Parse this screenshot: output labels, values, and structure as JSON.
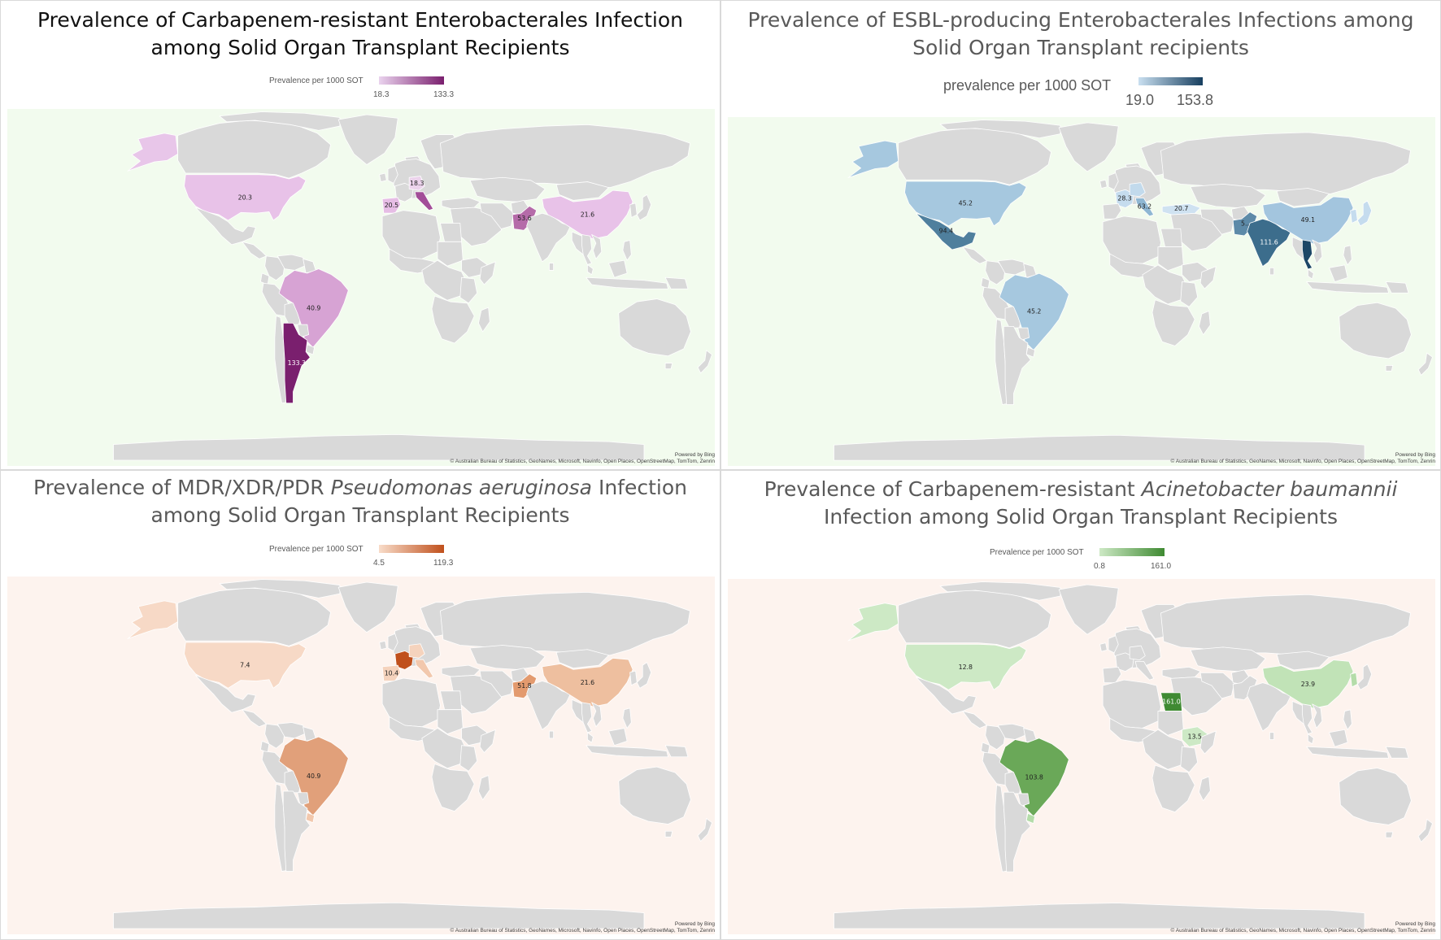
{
  "maps": [
    {
      "id": "cre",
      "title_lines": [
        [
          {
            "t": "Prevalence of Carbapenem-resistant Enterobacterales Infection"
          }
        ],
        [
          {
            "t": "among Solid Organ  Transplant Recipients"
          }
        ]
      ],
      "legend": {
        "label": "Prevalence per 1000 SOT",
        "min": "18.3",
        "max": "133.3",
        "color_min": "#ead3ee",
        "color_max": "#7a1f6e"
      },
      "background": "#f2fbee",
      "credit_powered": "Powered by Bing",
      "credit_sources": "© Australian Bureau of Statistics, GeoNames, Microsoft, Navinfo, Open Places, OpenStreetMap, TomTom, Zenrin",
      "regions": [
        {
          "country": "Alaska",
          "shape": "alaska",
          "value": null,
          "color": "#e8c6e9",
          "label": ""
        },
        {
          "country": "United States",
          "shape": "usa",
          "value": 20.3,
          "color": "#e8c2e8",
          "label": "20.3"
        },
        {
          "country": "Spain",
          "shape": "spain",
          "value": 20.5,
          "color": "#e6bde5",
          "label": "20.5"
        },
        {
          "country": "Germany",
          "shape": "germany",
          "value": 18.3,
          "color": "#ecd3ec",
          "label": "18.3"
        },
        {
          "country": "Italy",
          "shape": "italy",
          "value": null,
          "color": "#a24d98",
          "label": ""
        },
        {
          "country": "Pakistan",
          "shape": "pakistan",
          "value": 53.6,
          "color": "#b56ba9",
          "label": "53.6"
        },
        {
          "country": "China",
          "shape": "china",
          "value": 21.6,
          "color": "#e8c2e8",
          "label": "21.6"
        },
        {
          "country": "Brazil",
          "shape": "brazil",
          "value": 40.9,
          "color": "#d7a3d4",
          "label": "40.9"
        },
        {
          "country": "Argentina",
          "shape": "argentina",
          "value": 133.3,
          "color": "#7a1f6e",
          "label": "133.3"
        }
      ]
    },
    {
      "id": "esbl",
      "title_lines": [
        [
          {
            "t": "Prevalence of ESBL-producing Enterobacterales Infections among"
          }
        ],
        [
          {
            "t": "Solid Organ Transplant recipients"
          }
        ]
      ],
      "legend": {
        "label": "prevalence per 1000 SOT",
        "min": "19.0",
        "max": "153.8",
        "color_min": "#c9dff0",
        "color_max": "#173f5f"
      },
      "background": "#f2fbee",
      "credit_powered": "Powered by Bing",
      "credit_sources": "© Australian Bureau of Statistics, GeoNames, Microsoft, Navinfo, Open Places, OpenStreetMap, TomTom, Zenrin",
      "regions": [
        {
          "country": "Alaska",
          "shape": "alaska",
          "value": null,
          "color": "#a6c8df",
          "label": ""
        },
        {
          "country": "United States",
          "shape": "usa",
          "value": 45.2,
          "color": "#a6c8df",
          "label": "45.2"
        },
        {
          "country": "Mexico",
          "shape": "mexico",
          "value": 94.4,
          "color": "#4f7f9d",
          "label": "94.4"
        },
        {
          "country": "Brazil",
          "shape": "brazil",
          "value": 45.2,
          "color": "#a6c8df",
          "label": "45.2"
        },
        {
          "country": "France",
          "shape": "france",
          "value": 28.3,
          "color": "#c5dcee",
          "label": "28.3"
        },
        {
          "country": "Germany",
          "shape": "germany",
          "value": null,
          "color": "#c2daec",
          "label": ""
        },
        {
          "country": "Italy",
          "shape": "italy",
          "value": 63.2,
          "color": "#8fb7d3",
          "label": "63.2"
        },
        {
          "country": "Turkey",
          "shape": "turkey",
          "value": 20.7,
          "color": "#cfe2f1",
          "label": "20.7"
        },
        {
          "country": "Pakistan",
          "shape": "pakistan",
          "value": null,
          "color": "#5d8aa8",
          "label": "5.."
        },
        {
          "country": "India",
          "shape": "india",
          "value": 111.6,
          "color": "#3c6d8c",
          "label": "111.6"
        },
        {
          "country": "Thailand",
          "shape": "thailand",
          "value": null,
          "color": "#1c4766",
          "label": ""
        },
        {
          "country": "China",
          "shape": "china",
          "value": 49.1,
          "color": "#a3c5de",
          "label": "49.1"
        },
        {
          "country": "Japan",
          "shape": "japan",
          "value": null,
          "color": "#c5dcee",
          "label": ""
        },
        {
          "country": "South Korea",
          "shape": "korea",
          "value": null,
          "color": "#c5dcee",
          "label": ""
        }
      ]
    },
    {
      "id": "pseudo",
      "title_lines": [
        [
          {
            "t": "Prevalence of MDR/XDR/PDR "
          },
          {
            "t": "Pseudomonas aeruginosa",
            "i": true
          },
          {
            "t": " Infection"
          }
        ],
        [
          {
            "t": "among Solid Organ Transplant Recipients"
          }
        ]
      ],
      "legend": {
        "label": "Prevalence per 1000 SOT",
        "min": "4.5",
        "max": "119.3",
        "color_min": "#f8dcc9",
        "color_max": "#c0501c"
      },
      "background": "#fdf3ee",
      "credit_powered": "Powered by Bing",
      "credit_sources": "© Australian Bureau of Statistics, GeoNames, Microsoft, Navinfo, Open Places, OpenStreetMap, TomTom, Zenrin",
      "regions": [
        {
          "country": "Alaska",
          "shape": "alaska",
          "value": null,
          "color": "#f7d9c6",
          "label": ""
        },
        {
          "country": "United States",
          "shape": "usa",
          "value": 7.4,
          "color": "#f7d9c6",
          "label": "7.4"
        },
        {
          "country": "France",
          "shape": "france",
          "value": null,
          "color": "#c0501c",
          "label": ""
        },
        {
          "country": "Germany",
          "shape": "germany",
          "value": null,
          "color": "#f5d3bd",
          "label": ""
        },
        {
          "country": "Spain",
          "shape": "spain",
          "value": 10.4,
          "color": "#f5d3bd",
          "label": "10.4"
        },
        {
          "country": "Italy",
          "shape": "italy",
          "value": null,
          "color": "#f2c8ad",
          "label": ""
        },
        {
          "country": "Pakistan",
          "shape": "pakistan",
          "value": 51.8,
          "color": "#e39a6e",
          "label": "51.8"
        },
        {
          "country": "China",
          "shape": "china",
          "value": 21.6,
          "color": "#eebf9f",
          "label": "21.6"
        },
        {
          "country": "Brazil",
          "shape": "brazil",
          "value": 40.9,
          "color": "#e1a07a",
          "label": "40.9"
        },
        {
          "country": "Uruguay",
          "shape": "uruguay",
          "value": null,
          "color": "#f2c8ad",
          "label": ""
        }
      ]
    },
    {
      "id": "acineto",
      "title_lines": [
        [
          {
            "t": "Prevalence of Carbapenem-resistant "
          },
          {
            "t": "Acinetobacter baumannii",
            "i": true
          }
        ],
        [
          {
            "t": "Infection among Solid Organ Transplant Recipients"
          }
        ]
      ],
      "legend": {
        "label": "Prevalence per 1000 SOT",
        "min": "0.8",
        "max": "161.0",
        "color_min": "#cde9c5",
        "color_max": "#3f8a32"
      },
      "background": "#fdf3ee",
      "credit_powered": "Powered by Bing",
      "credit_sources": "© Australian Bureau of Statistics, GeoNames, Microsoft, Navinfo, Open Places, OpenStreetMap, TomTom, Zenrin",
      "regions": [
        {
          "country": "Alaska",
          "shape": "alaska",
          "value": null,
          "color": "#cde9c5",
          "label": ""
        },
        {
          "country": "United States",
          "shape": "usa",
          "value": 12.8,
          "color": "#cde9c5",
          "label": "12.8"
        },
        {
          "country": "Egypt",
          "shape": "egypt",
          "value": null,
          "color": "#3f8a32",
          "label": "161.0"
        },
        {
          "country": "Ethiopia",
          "shape": "ethiopia",
          "value": 13.5,
          "color": "#cde9c5",
          "label": "13.5"
        },
        {
          "country": "China",
          "shape": "china",
          "value": 23.9,
          "color": "#c1e3b7",
          "label": "23.9"
        },
        {
          "country": "South Korea",
          "shape": "korea",
          "value": null,
          "color": "#b4dca9",
          "label": ""
        },
        {
          "country": "Brazil",
          "shape": "brazil",
          "value": 103.8,
          "color": "#6aa858",
          "label": "103.8"
        },
        {
          "country": "Uruguay",
          "shape": "uruguay",
          "value": null,
          "color": "#b4dca9",
          "label": ""
        }
      ]
    }
  ]
}
